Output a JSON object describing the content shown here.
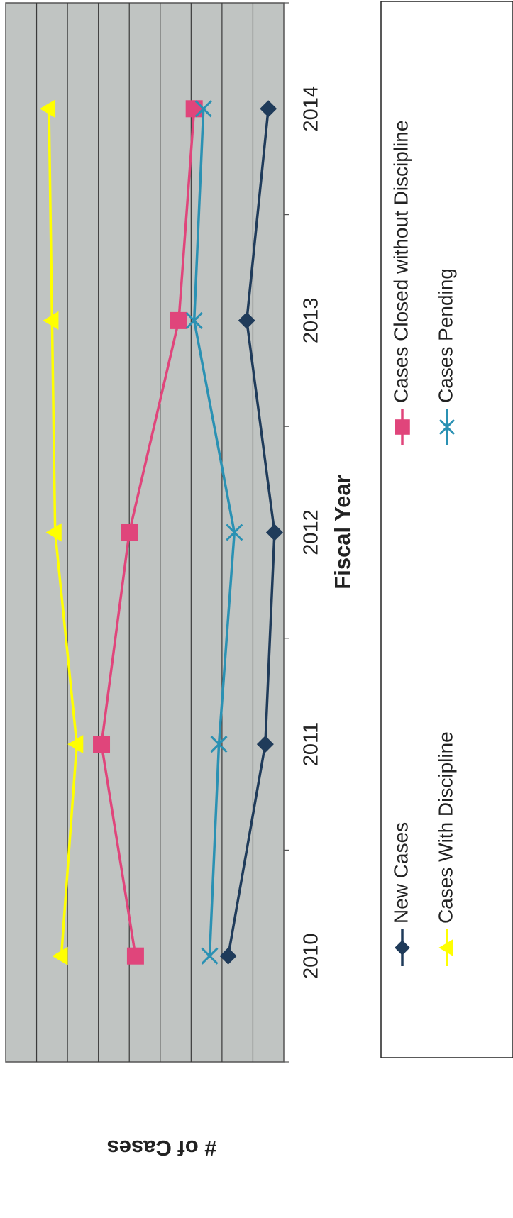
{
  "chart_data": {
    "type": "line",
    "title": "",
    "xlabel": "Fiscal Year",
    "ylabel": "# of Cases",
    "categories": [
      "2010",
      "2011",
      "2012",
      "2013",
      "2014"
    ],
    "ylim": [
      0,
      9
    ],
    "grid": true,
    "legend_position": "bottom",
    "series": [
      {
        "name": "New Cases",
        "values": [
          7.2,
          8.4,
          8.7,
          7.8,
          8.5
        ],
        "color": "#1f3b5a",
        "marker": "diamond"
      },
      {
        "name": "Cases Closed without Discipline",
        "values": [
          4.2,
          3.1,
          4.0,
          5.6,
          6.1
        ],
        "color": "#e0457b",
        "marker": "square"
      },
      {
        "name": "Cases With Discipline",
        "values": [
          1.8,
          2.3,
          1.6,
          1.5,
          1.4
        ],
        "color": "#ffff00",
        "marker": "triangle"
      },
      {
        "name": "Cases Pending",
        "values": [
          6.6,
          6.9,
          7.4,
          6.1,
          6.4
        ],
        "color": "#2a91b3",
        "marker": "x"
      }
    ],
    "colors": {
      "plot_background": "#c0c4c2",
      "gridline": "#3a3a3a"
    }
  }
}
